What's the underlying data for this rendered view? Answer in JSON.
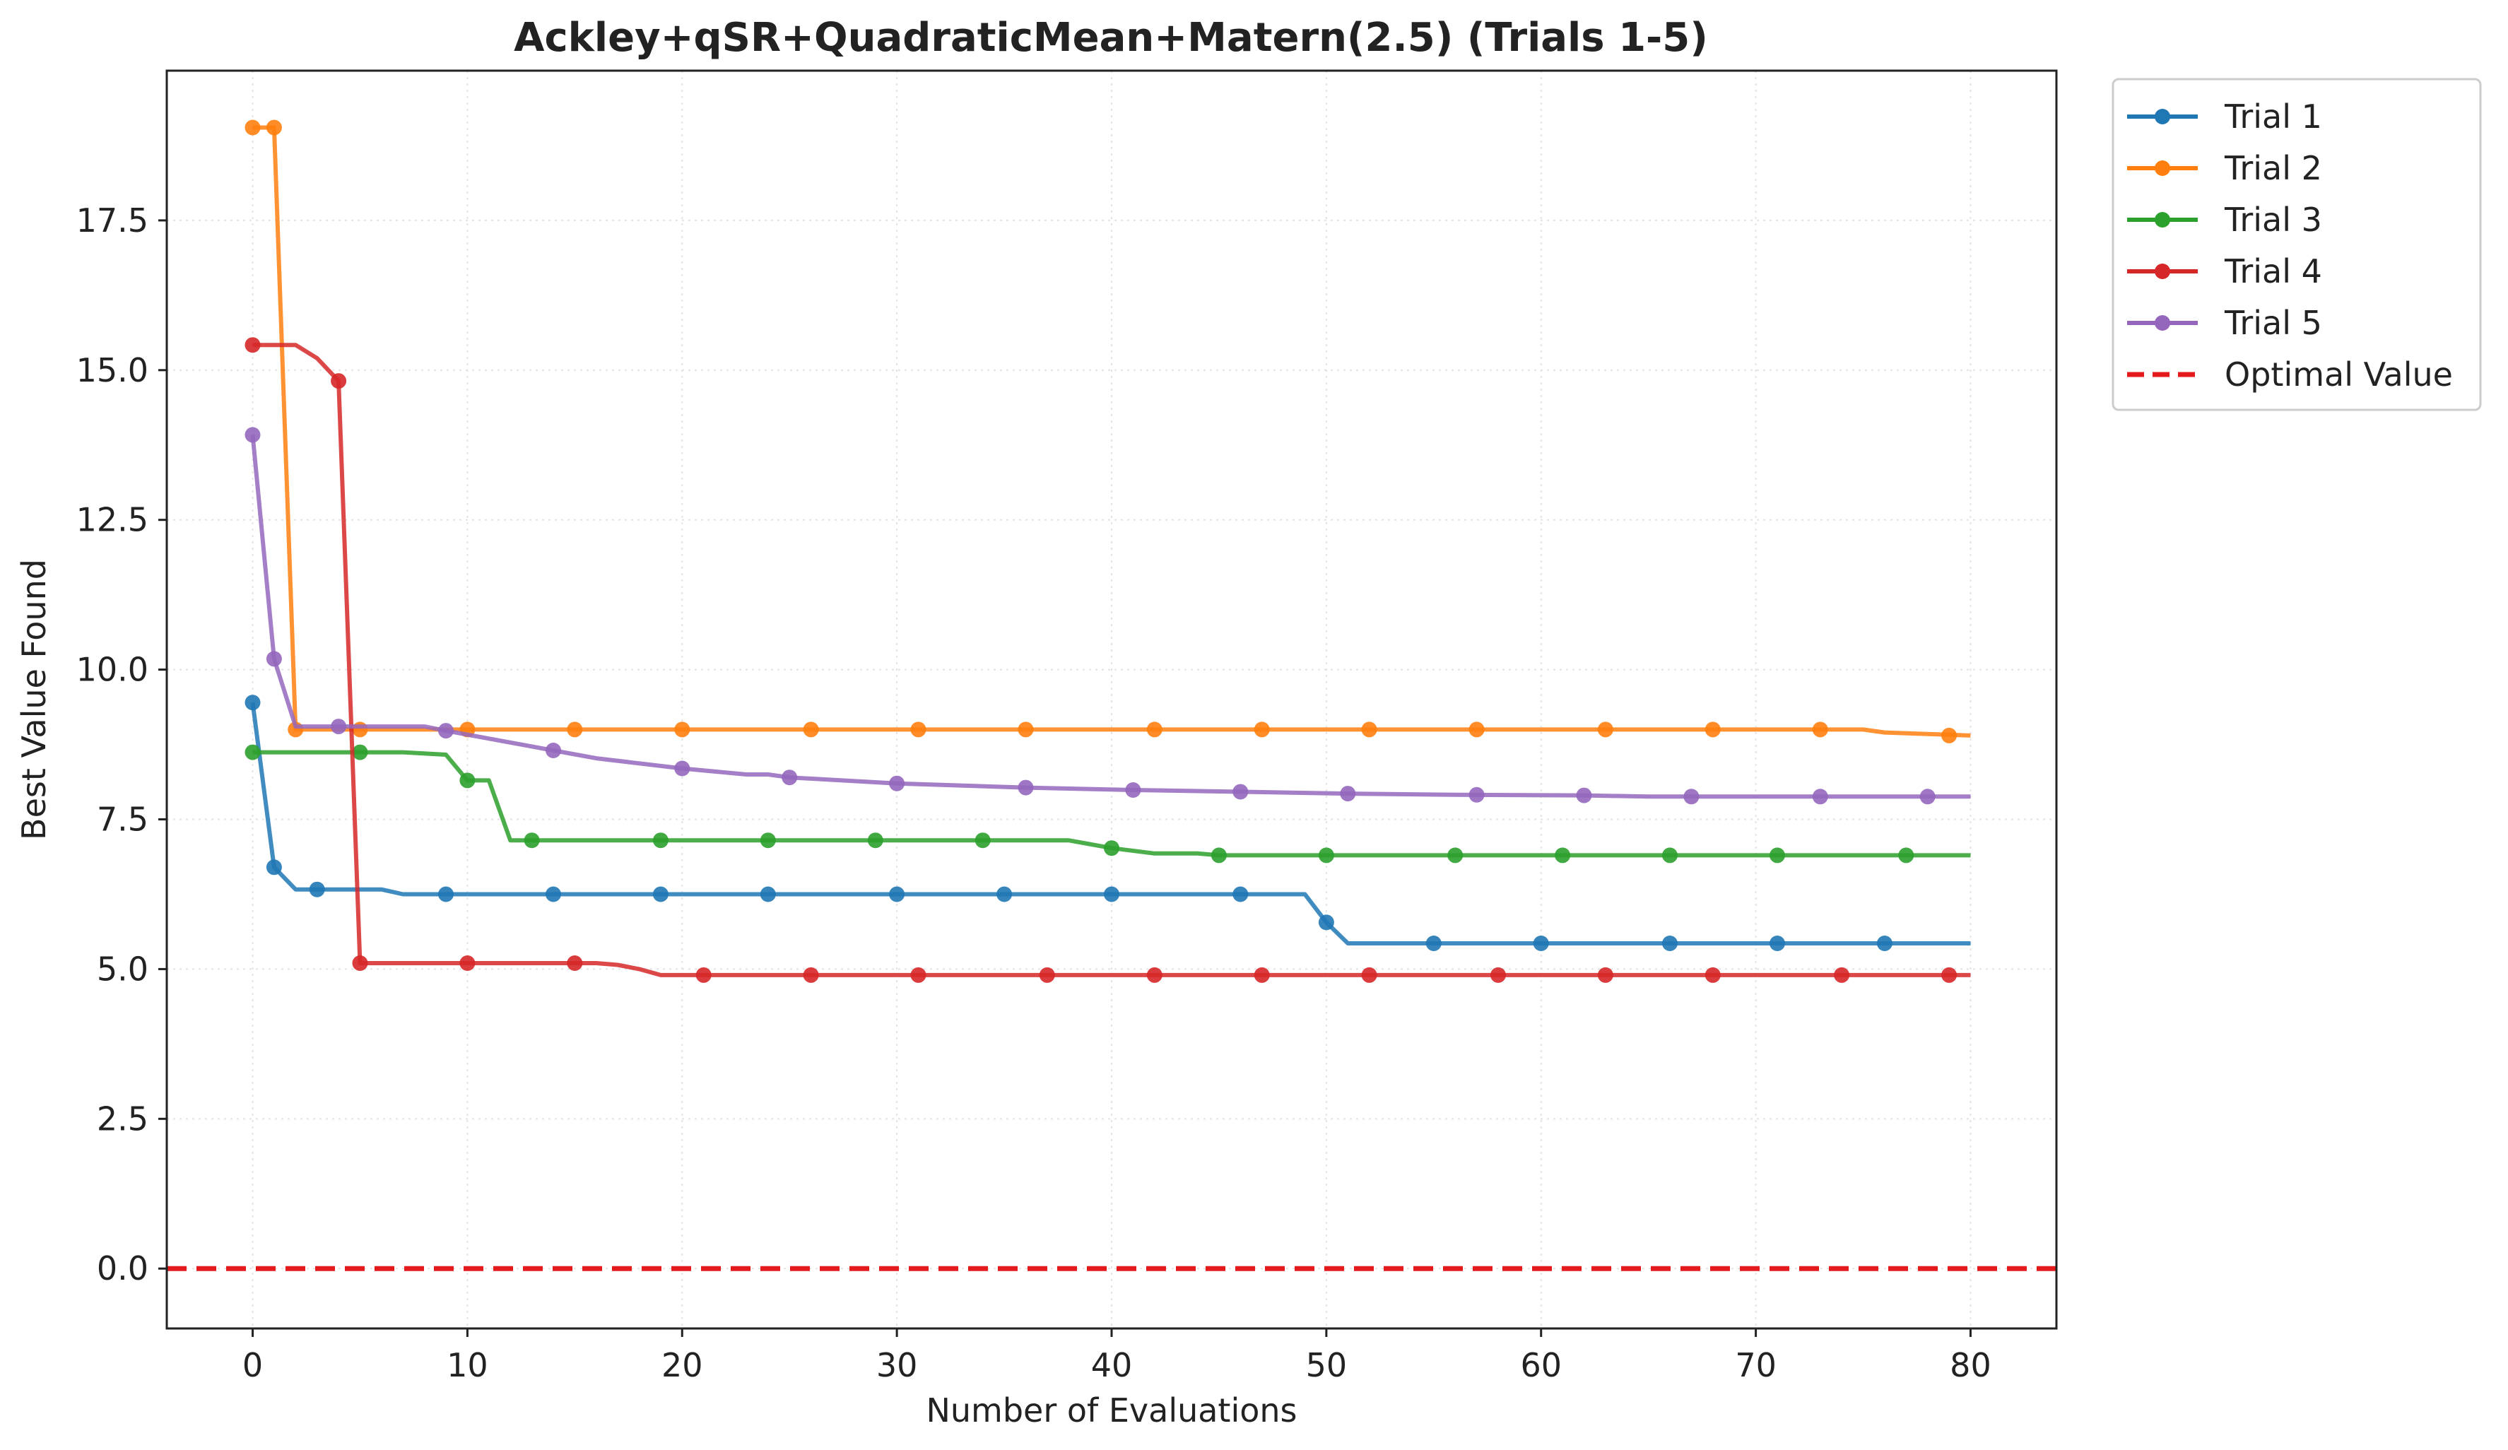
{
  "chart_data": {
    "type": "line",
    "title": "Ackley+qSR+QuadraticMean+Matern(2.5) (Trials 1-5)",
    "xlabel": "Number of Evaluations",
    "ylabel": "Best Value Found",
    "xlim": [
      -4,
      84
    ],
    "ylim": [
      -1.0,
      20.0
    ],
    "xticks": [
      0,
      10,
      20,
      30,
      40,
      50,
      60,
      70,
      80
    ],
    "xtick_labels": [
      "0",
      "10",
      "20",
      "30",
      "40",
      "50",
      "60",
      "70",
      "80"
    ],
    "yticks": [
      0.0,
      2.5,
      5.0,
      7.5,
      10.0,
      12.5,
      15.0,
      17.5
    ],
    "ytick_labels": [
      "0.0",
      "2.5",
      "5.0",
      "7.5",
      "10.0",
      "12.5",
      "15.0",
      "17.5"
    ],
    "grid": true,
    "legend_position": "outside top-right",
    "series": [
      {
        "name": "Trial 1",
        "color": "#1f77b4",
        "line": [
          [
            0,
            9.45
          ],
          [
            1,
            6.7
          ],
          [
            2,
            6.33
          ],
          [
            3,
            6.33
          ],
          [
            6,
            6.33
          ],
          [
            7,
            6.25
          ],
          [
            49,
            6.25
          ],
          [
            50,
            5.78
          ],
          [
            51,
            5.43
          ],
          [
            80,
            5.43
          ]
        ],
        "markers": [
          [
            0,
            9.45
          ],
          [
            1,
            6.7
          ],
          [
            3,
            6.33
          ],
          [
            9,
            6.25
          ],
          [
            14,
            6.25
          ],
          [
            19,
            6.25
          ],
          [
            24,
            6.25
          ],
          [
            30,
            6.25
          ],
          [
            35,
            6.25
          ],
          [
            40,
            6.25
          ],
          [
            46,
            6.25
          ],
          [
            50,
            5.78
          ],
          [
            55,
            5.43
          ],
          [
            60,
            5.43
          ],
          [
            66,
            5.43
          ],
          [
            71,
            5.43
          ],
          [
            76,
            5.43
          ]
        ]
      },
      {
        "name": "Trial 2",
        "color": "#ff7f0e",
        "line": [
          [
            0,
            19.05
          ],
          [
            1,
            19.05
          ],
          [
            2,
            9.0
          ],
          [
            75,
            9.0
          ],
          [
            76,
            8.95
          ],
          [
            80,
            8.9
          ]
        ],
        "markers": [
          [
            0,
            19.05
          ],
          [
            1,
            19.05
          ],
          [
            2,
            9.0
          ],
          [
            5,
            9.0
          ],
          [
            10,
            9.0
          ],
          [
            15,
            9.0
          ],
          [
            20,
            9.0
          ],
          [
            26,
            9.0
          ],
          [
            31,
            9.0
          ],
          [
            36,
            9.0
          ],
          [
            42,
            9.0
          ],
          [
            47,
            9.0
          ],
          [
            52,
            9.0
          ],
          [
            57,
            9.0
          ],
          [
            63,
            9.0
          ],
          [
            68,
            9.0
          ],
          [
            73,
            9.0
          ],
          [
            79,
            8.9
          ]
        ]
      },
      {
        "name": "Trial 3",
        "color": "#2ca02c",
        "line": [
          [
            0,
            8.62
          ],
          [
            7,
            8.62
          ],
          [
            9,
            8.58
          ],
          [
            10,
            8.15
          ],
          [
            11,
            8.15
          ],
          [
            12,
            7.15
          ],
          [
            38,
            7.15
          ],
          [
            40,
            7.02
          ],
          [
            42,
            6.93
          ],
          [
            44,
            6.93
          ],
          [
            45,
            6.9
          ],
          [
            80,
            6.9
          ]
        ],
        "markers": [
          [
            0,
            8.62
          ],
          [
            5,
            8.62
          ],
          [
            10,
            8.15
          ],
          [
            13,
            7.15
          ],
          [
            19,
            7.15
          ],
          [
            24,
            7.15
          ],
          [
            29,
            7.15
          ],
          [
            34,
            7.15
          ],
          [
            40,
            7.02
          ],
          [
            45,
            6.9
          ],
          [
            50,
            6.9
          ],
          [
            56,
            6.9
          ],
          [
            61,
            6.9
          ],
          [
            66,
            6.9
          ],
          [
            71,
            6.9
          ],
          [
            77,
            6.9
          ]
        ]
      },
      {
        "name": "Trial 4",
        "color": "#d62728",
        "line": [
          [
            0,
            15.42
          ],
          [
            2,
            15.42
          ],
          [
            3,
            15.2
          ],
          [
            4,
            14.82
          ],
          [
            5,
            5.1
          ],
          [
            16,
            5.1
          ],
          [
            17,
            5.07
          ],
          [
            18,
            5.0
          ],
          [
            19,
            4.9
          ],
          [
            80,
            4.9
          ]
        ],
        "markers": [
          [
            0,
            15.42
          ],
          [
            4,
            14.82
          ],
          [
            5,
            5.1
          ],
          [
            10,
            5.1
          ],
          [
            15,
            5.1
          ],
          [
            21,
            4.9
          ],
          [
            26,
            4.9
          ],
          [
            31,
            4.9
          ],
          [
            37,
            4.9
          ],
          [
            42,
            4.9
          ],
          [
            47,
            4.9
          ],
          [
            52,
            4.9
          ],
          [
            58,
            4.9
          ],
          [
            63,
            4.9
          ],
          [
            68,
            4.9
          ],
          [
            74,
            4.9
          ],
          [
            79,
            4.9
          ]
        ]
      },
      {
        "name": "Trial 5",
        "color": "#9467bd",
        "line": [
          [
            0,
            13.92
          ],
          [
            1,
            10.18
          ],
          [
            2,
            9.05
          ],
          [
            8,
            9.05
          ],
          [
            9,
            8.98
          ],
          [
            14,
            8.65
          ],
          [
            16,
            8.52
          ],
          [
            20,
            8.35
          ],
          [
            23,
            8.25
          ],
          [
            24,
            8.25
          ],
          [
            25,
            8.2
          ],
          [
            30,
            8.1
          ],
          [
            36,
            8.03
          ],
          [
            41,
            7.99
          ],
          [
            46,
            7.96
          ],
          [
            51,
            7.93
          ],
          [
            56,
            7.91
          ],
          [
            62,
            7.9
          ],
          [
            65,
            7.88
          ],
          [
            80,
            7.88
          ]
        ],
        "markers": [
          [
            0,
            13.92
          ],
          [
            1,
            10.18
          ],
          [
            4,
            9.05
          ],
          [
            9,
            8.98
          ],
          [
            14,
            8.65
          ],
          [
            20,
            8.35
          ],
          [
            25,
            8.2
          ],
          [
            30,
            8.1
          ],
          [
            36,
            8.03
          ],
          [
            41,
            7.99
          ],
          [
            46,
            7.96
          ],
          [
            51,
            7.93
          ],
          [
            57,
            7.91
          ],
          [
            62,
            7.9
          ],
          [
            67,
            7.88
          ],
          [
            73,
            7.88
          ],
          [
            78,
            7.88
          ]
        ]
      }
    ],
    "reference_line": {
      "name": "Optimal Value",
      "y": 0.0,
      "color": "#e41a1c",
      "style": "dashed"
    }
  }
}
